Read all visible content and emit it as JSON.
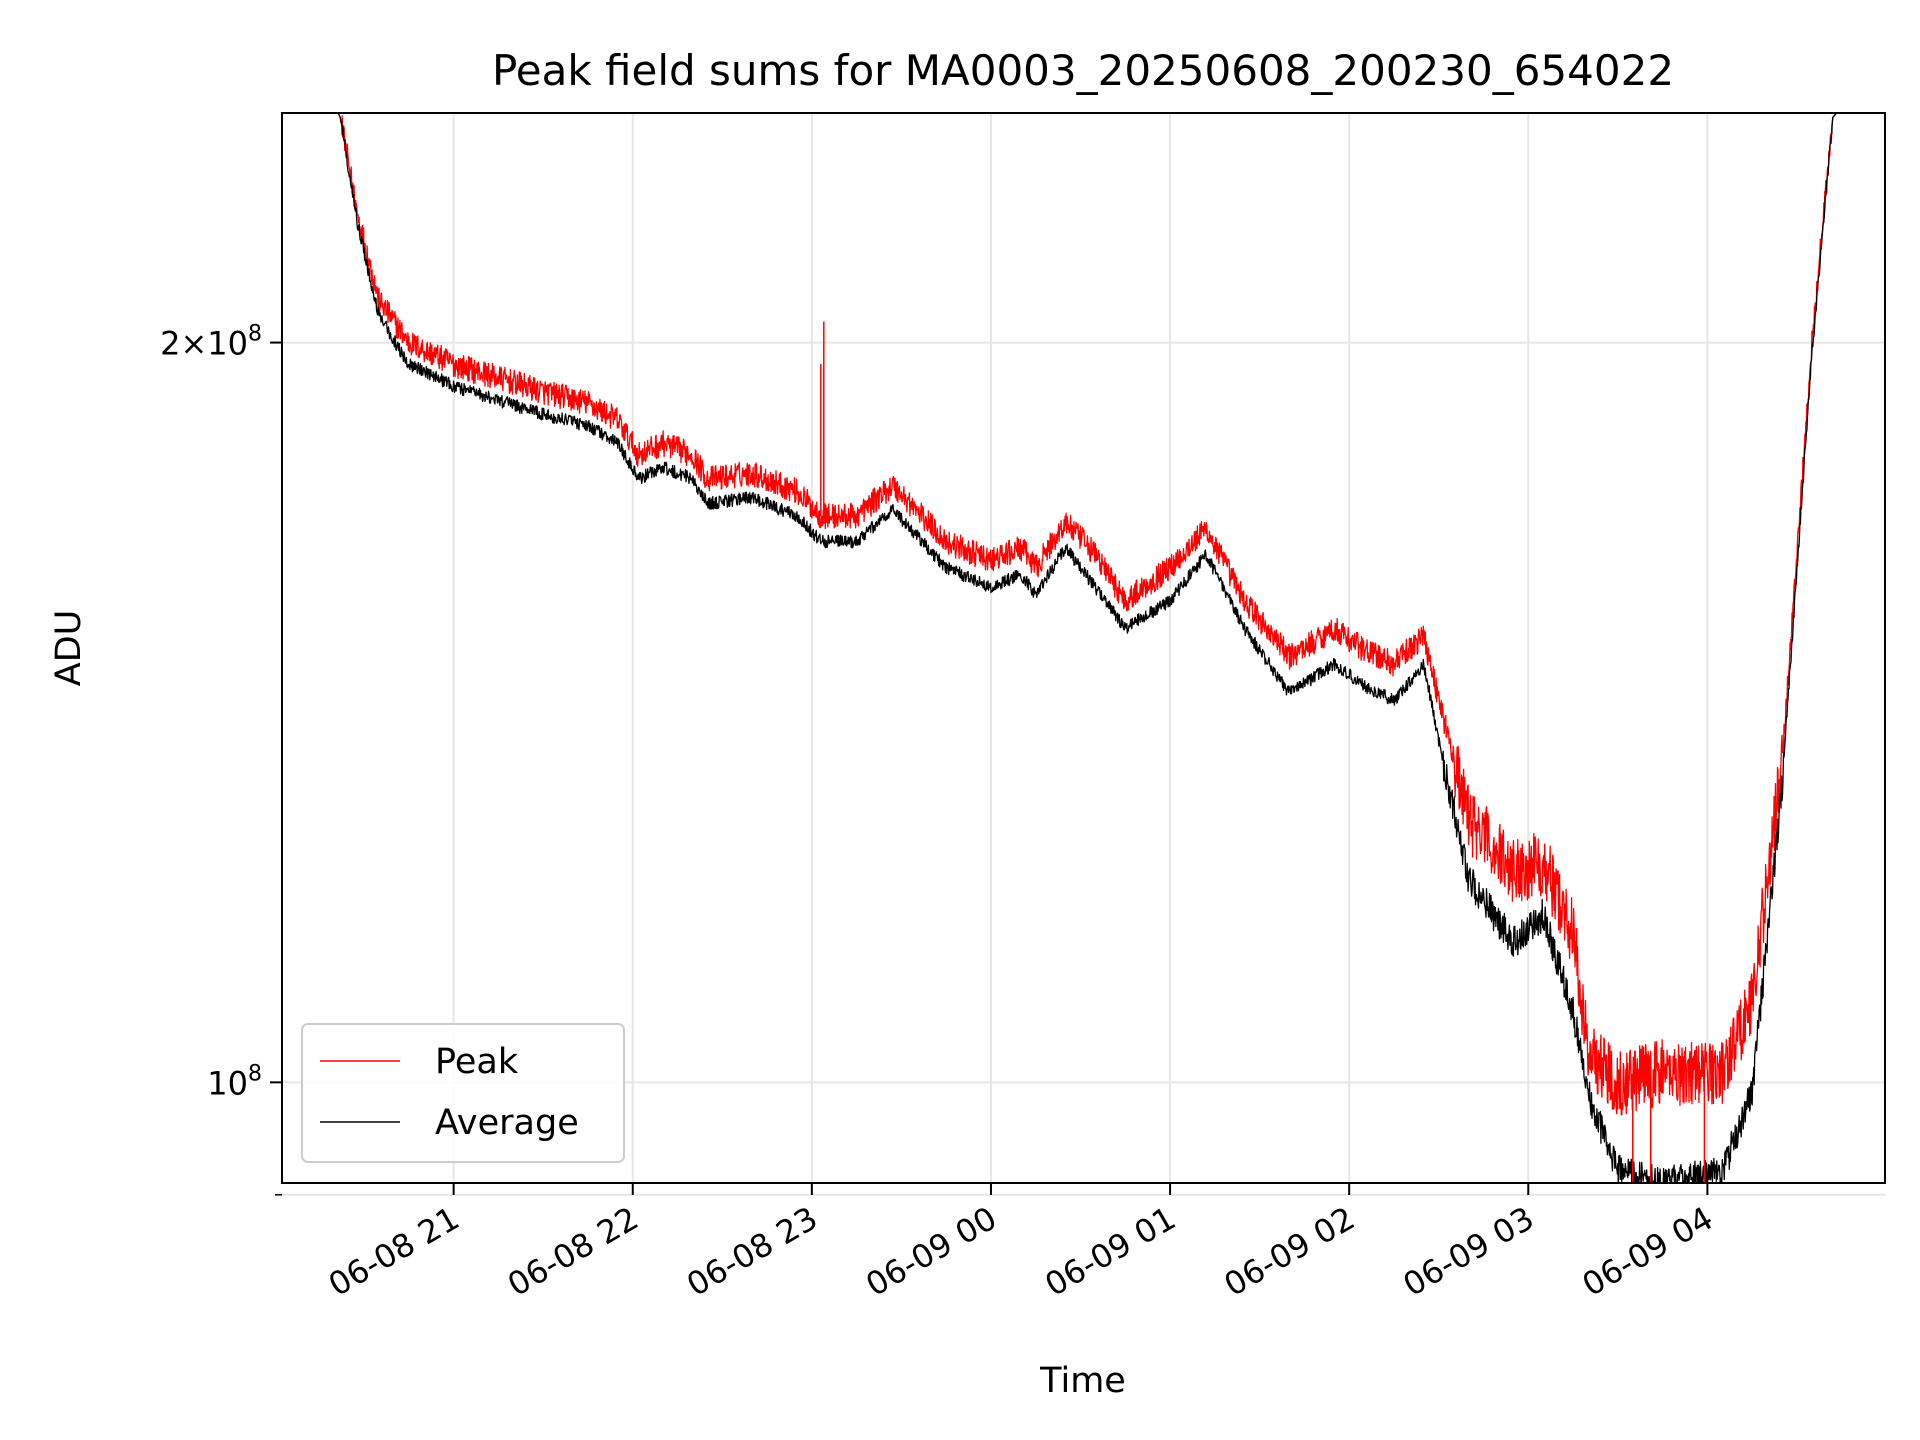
{
  "chart_data": {
    "type": "line",
    "title": "Peak field sums for MA0003_20250608_200230_654022",
    "xlabel": "Time",
    "ylabel": "ADU",
    "yscale": "log",
    "xlim": [
      "2025-06-08T20:02:30",
      "2025-06-09T04:59:30"
    ],
    "ylim": [
      91000000,
      248000000
    ],
    "xticks": [
      {
        "t": "2025-06-08T21:00",
        "label": "06-08 21"
      },
      {
        "t": "2025-06-08T22:00",
        "label": "06-08 22"
      },
      {
        "t": "2025-06-08T23:00",
        "label": "06-08 23"
      },
      {
        "t": "2025-06-09T00:00",
        "label": "06-09 00"
      },
      {
        "t": "2025-06-09T01:00",
        "label": "06-09 01"
      },
      {
        "t": "2025-06-09T02:00",
        "label": "06-09 02"
      },
      {
        "t": "2025-06-09T03:00",
        "label": "06-09 03"
      },
      {
        "t": "2025-06-09T04:00",
        "label": "06-09 04"
      }
    ],
    "yticks_major": [
      {
        "v": 100000000,
        "base": "10",
        "exp": "8"
      },
      {
        "v": 200000000,
        "base": "2×10",
        "exp": "8"
      }
    ],
    "yticks_minor": [
      90000000
    ],
    "grid": true,
    "legend_position": "lower-left",
    "series": [
      {
        "name": "Peak",
        "color": "#ff0000",
        "noise": 0.012,
        "points": [
          [
            "2025-06-08T20:02",
            250000000
          ],
          [
            "2025-06-08T20:20",
            250000000
          ],
          [
            "2025-06-08T20:22",
            247000000
          ],
          [
            "2025-06-08T20:28",
            225000000
          ],
          [
            "2025-06-08T20:35",
            208000000
          ],
          [
            "2025-06-08T20:45",
            200000000
          ],
          [
            "2025-06-08T21:00",
            196000000
          ],
          [
            "2025-06-08T21:30",
            191000000
          ],
          [
            "2025-06-08T21:45",
            189000000
          ],
          [
            "2025-06-08T21:55",
            186000000
          ],
          [
            "2025-06-08T22:02",
            180000000
          ],
          [
            "2025-06-08T22:10",
            182000000
          ],
          [
            "2025-06-08T22:20",
            180000000
          ],
          [
            "2025-06-08T22:25",
            176000000
          ],
          [
            "2025-06-08T22:40",
            177000000
          ],
          [
            "2025-06-08T22:55",
            174000000
          ],
          [
            "2025-06-08T23:03",
            170000000
          ],
          [
            "2025-06-08T23:15",
            170000000
          ],
          [
            "2025-06-08T23:27",
            175000000
          ],
          [
            "2025-06-08T23:45",
            166000000
          ],
          [
            "2025-06-09T00:00",
            163000000
          ],
          [
            "2025-06-09T00:10",
            165000000
          ],
          [
            "2025-06-09T00:15",
            162000000
          ],
          [
            "2025-06-09T00:25",
            169000000
          ],
          [
            "2025-06-09T00:35",
            164000000
          ],
          [
            "2025-06-09T00:45",
            157000000
          ],
          [
            "2025-06-09T01:00",
            162000000
          ],
          [
            "2025-06-09T01:12",
            168000000
          ],
          [
            "2025-06-09T01:25",
            157000000
          ],
          [
            "2025-06-09T01:40",
            149000000
          ],
          [
            "2025-06-09T01:55",
            153000000
          ],
          [
            "2025-06-09T02:05",
            150000000
          ],
          [
            "2025-06-09T02:15",
            148000000
          ],
          [
            "2025-06-09T02:25",
            152000000
          ],
          [
            "2025-06-09T02:32",
            140000000
          ],
          [
            "2025-06-09T02:40",
            128000000
          ],
          [
            "2025-06-09T02:55",
            122000000
          ],
          [
            "2025-06-09T03:05",
            123000000
          ],
          [
            "2025-06-09T03:15",
            115000000
          ],
          [
            "2025-06-09T03:20",
            103000000
          ],
          [
            "2025-06-09T03:30",
            100000000
          ],
          [
            "2025-06-09T03:45",
            101000000
          ],
          [
            "2025-06-09T04:05",
            101000000
          ],
          [
            "2025-06-09T04:15",
            108000000
          ],
          [
            "2025-06-09T04:25",
            135000000
          ],
          [
            "2025-06-09T04:35",
            200000000
          ],
          [
            "2025-06-09T04:42",
            247000000
          ],
          [
            "2025-06-09T04:46",
            250000000
          ],
          [
            "2025-06-09T05:00",
            250000000
          ]
        ]
      },
      {
        "name": "Average",
        "color": "#000000",
        "noise": 0.006,
        "points": [
          [
            "2025-06-08T20:02",
            250000000
          ],
          [
            "2025-06-08T20:20",
            250000000
          ],
          [
            "2025-06-08T20:22",
            247000000
          ],
          [
            "2025-06-08T20:28",
            223000000
          ],
          [
            "2025-06-08T20:35",
            205000000
          ],
          [
            "2025-06-08T20:45",
            196000000
          ],
          [
            "2025-06-08T21:00",
            192000000
          ],
          [
            "2025-06-08T21:30",
            187000000
          ],
          [
            "2025-06-08T21:45",
            185000000
          ],
          [
            "2025-06-08T21:55",
            182000000
          ],
          [
            "2025-06-08T22:02",
            176000000
          ],
          [
            "2025-06-08T22:10",
            178000000
          ],
          [
            "2025-06-08T22:20",
            176000000
          ],
          [
            "2025-06-08T22:25",
            172000000
          ],
          [
            "2025-06-08T22:40",
            173000000
          ],
          [
            "2025-06-08T22:55",
            170000000
          ],
          [
            "2025-06-08T23:03",
            166000000
          ],
          [
            "2025-06-08T23:15",
            166000000
          ],
          [
            "2025-06-08T23:27",
            171000000
          ],
          [
            "2025-06-08T23:45",
            162000000
          ],
          [
            "2025-06-09T00:00",
            159000000
          ],
          [
            "2025-06-09T00:10",
            161000000
          ],
          [
            "2025-06-09T00:15",
            158000000
          ],
          [
            "2025-06-09T00:25",
            165000000
          ],
          [
            "2025-06-09T00:35",
            159000000
          ],
          [
            "2025-06-09T00:45",
            153000000
          ],
          [
            "2025-06-09T01:00",
            157000000
          ],
          [
            "2025-06-09T01:12",
            164000000
          ],
          [
            "2025-06-09T01:25",
            153000000
          ],
          [
            "2025-06-09T01:40",
            144000000
          ],
          [
            "2025-06-09T01:55",
            148000000
          ],
          [
            "2025-06-09T02:05",
            145000000
          ],
          [
            "2025-06-09T02:15",
            143000000
          ],
          [
            "2025-06-09T02:25",
            148000000
          ],
          [
            "2025-06-09T02:32",
            134000000
          ],
          [
            "2025-06-09T02:40",
            121000000
          ],
          [
            "2025-06-09T02:55",
            114000000
          ],
          [
            "2025-06-09T03:05",
            117000000
          ],
          [
            "2025-06-09T03:15",
            107000000
          ],
          [
            "2025-06-09T03:20",
            99000000
          ],
          [
            "2025-06-09T03:30",
            92000000
          ],
          [
            "2025-06-09T03:45",
            91000000
          ],
          [
            "2025-06-09T04:05",
            92000000
          ],
          [
            "2025-06-09T04:15",
            99000000
          ],
          [
            "2025-06-09T04:25",
            132000000
          ],
          [
            "2025-06-09T04:35",
            198000000
          ],
          [
            "2025-06-09T04:42",
            247000000
          ],
          [
            "2025-06-09T04:46",
            250000000
          ],
          [
            "2025-06-09T05:00",
            250000000
          ]
        ]
      }
    ],
    "spikes": [
      {
        "series": "Peak",
        "t": "2025-06-08T23:04",
        "value": 204000000
      },
      {
        "series": "Peak",
        "t": "2025-06-08T23:03",
        "value": 196000000
      },
      {
        "series": "Peak",
        "t": "2025-06-09T03:35",
        "value": 91000000
      },
      {
        "series": "Peak",
        "t": "2025-06-09T03:41",
        "value": 91000000
      },
      {
        "series": "Peak",
        "t": "2025-06-09T03:59",
        "value": 91000000
      }
    ]
  }
}
